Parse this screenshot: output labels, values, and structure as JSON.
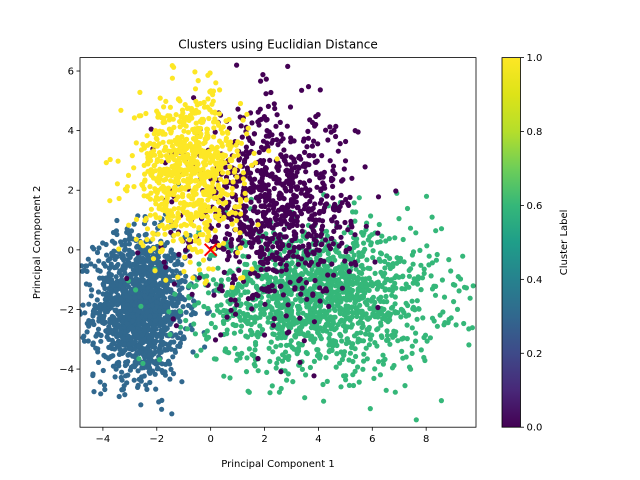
{
  "chart_data": {
    "type": "scatter",
    "title": "Clusters using Euclidian Distance",
    "xlabel": "Principal Component 1",
    "ylabel": "Principal Component 2",
    "xlim": [
      -4.85,
      9.85
    ],
    "ylim": [
      -5.95,
      6.45
    ],
    "xticks": [
      -4,
      -2,
      0,
      2,
      4,
      6,
      8
    ],
    "yticks": [
      -4,
      -2,
      0,
      2,
      4,
      6
    ],
    "grid": false,
    "colorbar": {
      "label": "Cluster Label",
      "range": [
        0.0,
        1.0
      ],
      "ticks": [
        0.0,
        0.2,
        0.4,
        0.6,
        0.8,
        1.0
      ],
      "tick_labels": [
        "0.0",
        "0.2",
        "0.4",
        "0.6",
        "0.8",
        "1.0"
      ],
      "colormap": "viridis"
    },
    "clusters": [
      {
        "label": 0.0,
        "color": "#440154",
        "cx": 2.3,
        "cy": 1.4,
        "sx": 1.5,
        "sy": 1.6,
        "n": 900
      },
      {
        "label": 0.3333,
        "color": "#31688e",
        "cx": -2.6,
        "cy": -1.9,
        "sx": 0.85,
        "sy": 1.2,
        "n": 1400
      },
      {
        "label": 0.6667,
        "color": "#35b779",
        "cx": 4.0,
        "cy": -1.6,
        "sx": 2.2,
        "sy": 1.2,
        "n": 1500
      },
      {
        "label": 1.0,
        "color": "#fde725",
        "cx": -0.8,
        "cy": 2.6,
        "sx": 1.0,
        "sy": 1.3,
        "n": 800
      }
    ],
    "centroids": [
      {
        "x": 0.0,
        "y": 0.0,
        "color": "#ff0000",
        "marker": "x"
      }
    ]
  }
}
